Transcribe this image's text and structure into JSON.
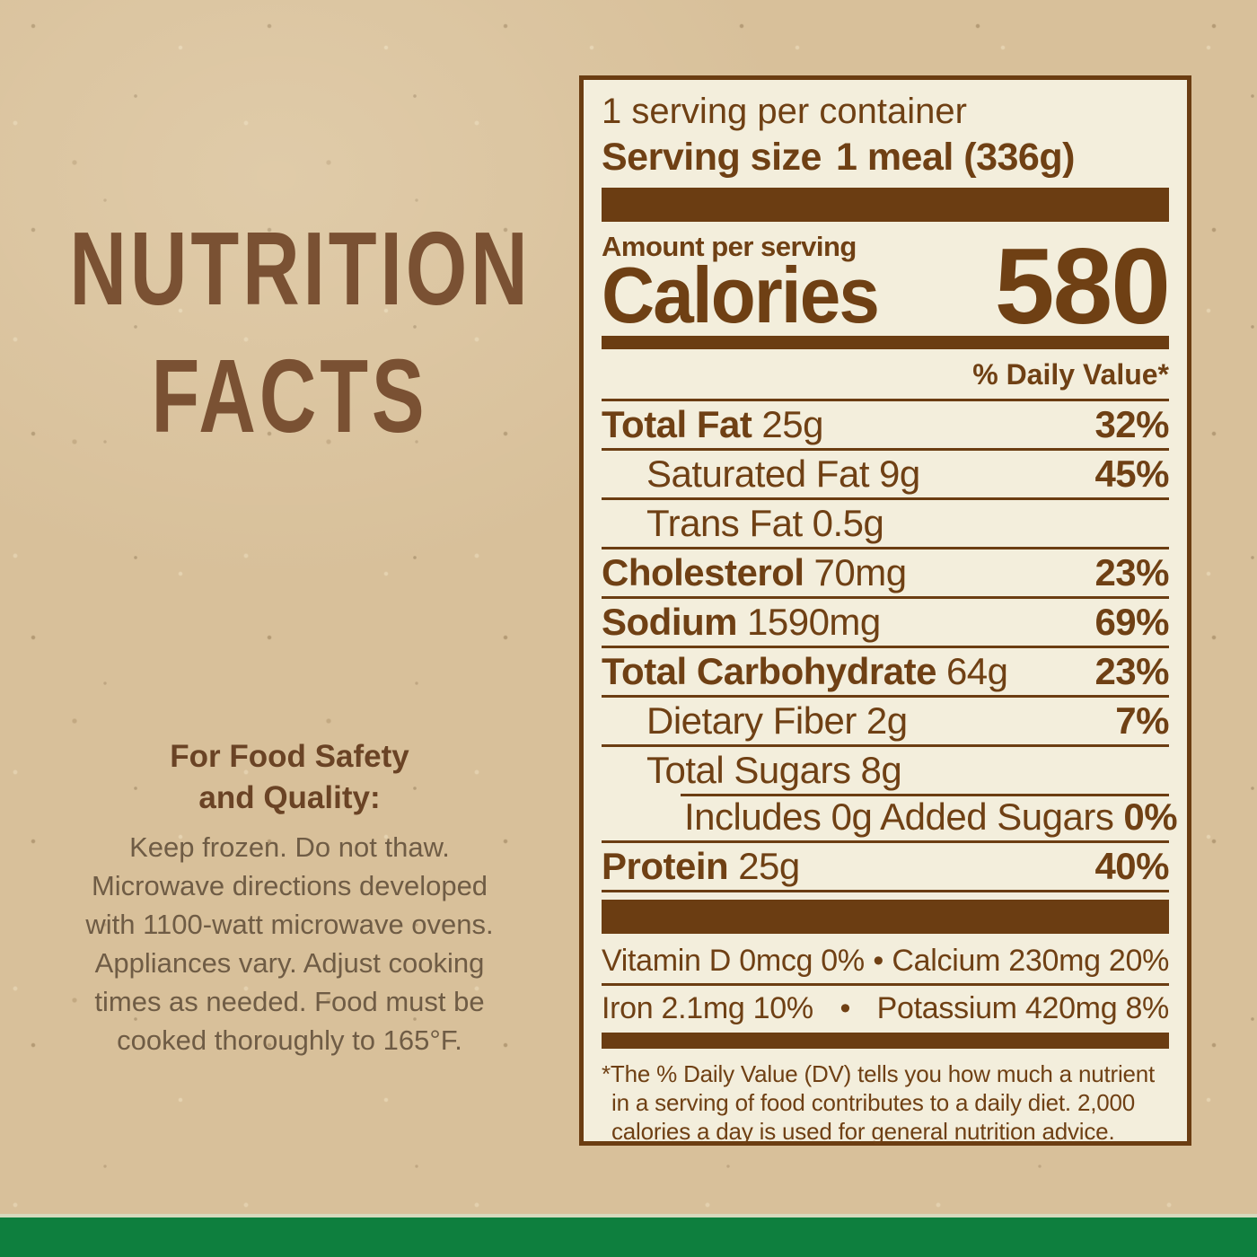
{
  "colors": {
    "kraft": "#d8c09a",
    "cream": "#f3eedc",
    "brown_bar": "#6b3d12",
    "brown_text": "#6f4014",
    "title_brown": "#7a5133",
    "safety_heading": "#6a4325",
    "safety_body": "#6f5c45",
    "green": "#0e7f3e",
    "pale_line": "#d6d9bd"
  },
  "left_panel": {
    "title_line1": "NUTRITION",
    "title_line2": "FACTS",
    "safety_heading_line1": "For Food Safety",
    "safety_heading_line2": "and Quality:",
    "safety_body_lines": [
      "Keep frozen. Do not thaw.",
      "Microwave directions developed",
      "with 1100-watt microwave ovens.",
      "Appliances vary. Adjust cooking",
      "times as needed. Food must be",
      "cooked thoroughly to 165°F."
    ]
  },
  "nutrition_label": {
    "servings_per_container": "1 serving per container",
    "serving_size_label": "Serving size",
    "serving_size_value": "1 meal (336g)",
    "amount_per_serving": "Amount per serving",
    "calories_label": "Calories",
    "calories_value": "580",
    "daily_value_header": "% Daily Value*",
    "rows": [
      {
        "name": "Total Fat",
        "amount": "25g",
        "dv": "32%"
      },
      {
        "name": "Saturated Fat",
        "amount": "9g",
        "dv": "45%"
      },
      {
        "name": "Trans Fat",
        "amount": "0.5g",
        "dv": ""
      },
      {
        "name": "Cholesterol",
        "amount": "70mg",
        "dv": "23%"
      },
      {
        "name": "Sodium",
        "amount": "1590mg",
        "dv": "69%"
      },
      {
        "name": "Total Carbohydrate",
        "amount": "64g",
        "dv": "23%"
      },
      {
        "name": "Dietary Fiber",
        "amount": "2g",
        "dv": "7%"
      },
      {
        "name": "Total Sugars",
        "amount": "8g",
        "dv": ""
      },
      {
        "name": "Includes 0g Added Sugars",
        "amount": "",
        "dv": "0%"
      },
      {
        "name": "Protein",
        "amount": "25g",
        "dv": "40%"
      }
    ],
    "micronutrient_rows": [
      {
        "left": "Vitamin D 0mcg 0%",
        "bullet": "•",
        "right": "Calcium 230mg 20%"
      },
      {
        "left": "Iron 2.1mg 10%",
        "bullet": "•",
        "right": "Potassium 420mg 8%"
      }
    ],
    "footnote_lines": [
      "*The % Daily Value (DV) tells you how much a nutrient",
      "in a serving of food contributes to a daily diet. 2,000",
      "calories a day is used for general nutrition advice."
    ]
  }
}
